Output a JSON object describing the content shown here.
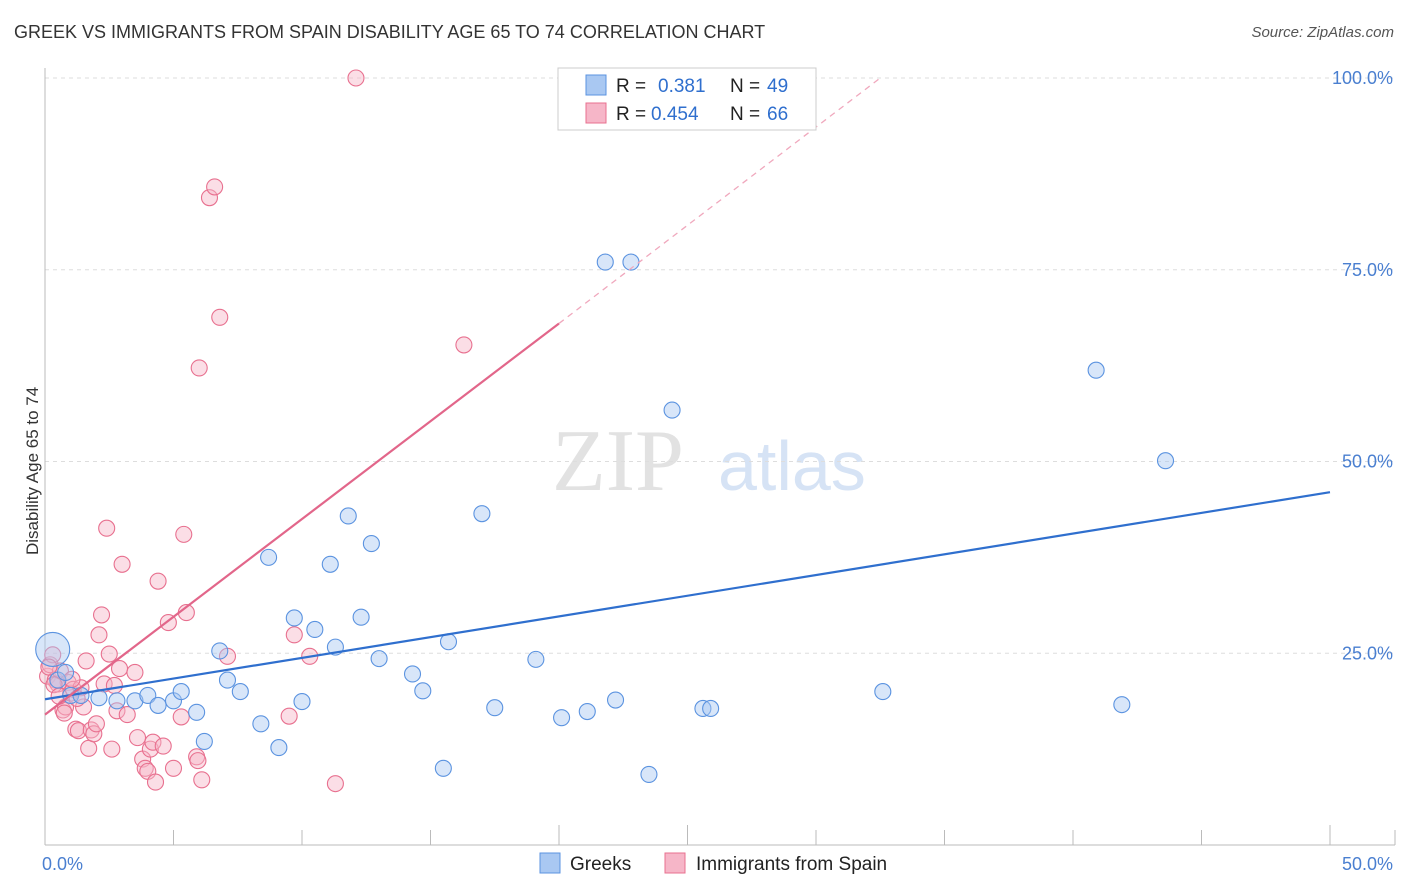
{
  "header": {
    "title": "GREEK VS IMMIGRANTS FROM SPAIN DISABILITY AGE 65 TO 74 CORRELATION CHART",
    "source": "Source: ZipAtlas.com"
  },
  "colors": {
    "greeks": "#5b93e0",
    "greeks_fill": "#a9c8f2",
    "spain": "#e8708f",
    "spain_fill": "#f6b6c8",
    "grid": "#dddddd",
    "tick_text": "#4a7fd0"
  },
  "legend": {
    "rows": [
      {
        "r_label": "R =",
        "r_value": "0.381",
        "n_label": "N =",
        "n_value": "49"
      },
      {
        "r_label": "R =",
        "r_value": "0.454",
        "n_label": "N =",
        "n_value": "66"
      }
    ]
  },
  "bottom_legend": {
    "greeks": "Greeks",
    "spain": "Immigrants from Spain"
  },
  "watermark": {
    "zip": "ZIP",
    "atlas": "atlas"
  },
  "chart_data": {
    "type": "scatter",
    "title": "GREEK VS IMMIGRANTS FROM SPAIN DISABILITY AGE 65 TO 74 CORRELATION CHART",
    "xlabel": "",
    "ylabel": "Disability Age 65 to 74",
    "xlim": [
      0,
      50
    ],
    "ylim": [
      0,
      100
    ],
    "x_tick_labels": [
      "0.0%",
      "50.0%"
    ],
    "y_tick_labels": [
      "25.0%",
      "50.0%",
      "75.0%",
      "100.0%"
    ],
    "y_ticks": [
      25,
      50,
      75,
      100
    ],
    "series": [
      {
        "name": "Greeks",
        "r": 0.381,
        "n": 49,
        "trend": {
          "x0": 0,
          "y0": 19,
          "x1": 50,
          "y1": 46
        },
        "points": [
          [
            0.3,
            25.5
          ],
          [
            0.5,
            21.5
          ],
          [
            0.8,
            22.5
          ],
          [
            1.0,
            19.5
          ],
          [
            1.4,
            19.5
          ],
          [
            2.1,
            19.2
          ],
          [
            2.8,
            18.8
          ],
          [
            3.5,
            18.8
          ],
          [
            4.0,
            19.5
          ],
          [
            4.4,
            18.2
          ],
          [
            5.0,
            18.8
          ],
          [
            5.3,
            20.0
          ],
          [
            5.9,
            17.3
          ],
          [
            6.2,
            13.5
          ],
          [
            6.8,
            25.3
          ],
          [
            7.1,
            21.5
          ],
          [
            7.6,
            20.0
          ],
          [
            8.4,
            15.8
          ],
          [
            8.7,
            37.5
          ],
          [
            9.1,
            12.7
          ],
          [
            9.7,
            29.6
          ],
          [
            10.0,
            18.7
          ],
          [
            10.5,
            28.1
          ],
          [
            11.1,
            36.6
          ],
          [
            11.3,
            25.8
          ],
          [
            11.8,
            42.9
          ],
          [
            12.3,
            29.7
          ],
          [
            12.7,
            39.3
          ],
          [
            13.0,
            24.3
          ],
          [
            14.3,
            22.3
          ],
          [
            14.7,
            20.1
          ],
          [
            15.5,
            10.0
          ],
          [
            15.7,
            26.5
          ],
          [
            17.0,
            43.2
          ],
          [
            17.5,
            17.9
          ],
          [
            19.1,
            24.2
          ],
          [
            20.1,
            16.6
          ],
          [
            21.1,
            17.4
          ],
          [
            21.8,
            76.0
          ],
          [
            22.2,
            18.9
          ],
          [
            22.8,
            76.0
          ],
          [
            23.5,
            9.2
          ],
          [
            24.4,
            56.7
          ],
          [
            25.6,
            17.8
          ],
          [
            25.9,
            17.8
          ],
          [
            32.6,
            20.0
          ],
          [
            40.9,
            61.9
          ],
          [
            41.9,
            18.3
          ],
          [
            43.6,
            50.1
          ]
        ]
      },
      {
        "name": "Immigrants from Spain",
        "r": 0.454,
        "n": 66,
        "trend": {
          "x0": 0,
          "y0": 17,
          "x1": 20,
          "y1": 68
        },
        "trend_dashed": {
          "x0": 20,
          "y0": 68,
          "x1": 32.5,
          "y1": 100
        },
        "points": [
          [
            0.1,
            22.0
          ],
          [
            0.2,
            23.5
          ],
          [
            0.3,
            24.8
          ],
          [
            0.4,
            21.5
          ],
          [
            0.5,
            21.0
          ],
          [
            0.6,
            22.7
          ],
          [
            0.7,
            17.6
          ],
          [
            0.8,
            18.0
          ],
          [
            0.9,
            21.2
          ],
          [
            1.0,
            19.8
          ],
          [
            1.1,
            20.3
          ],
          [
            1.2,
            15.1
          ],
          [
            1.3,
            14.9
          ],
          [
            1.4,
            20.5
          ],
          [
            1.5,
            18.0
          ],
          [
            1.6,
            24.0
          ],
          [
            1.7,
            12.6
          ],
          [
            1.8,
            15.0
          ],
          [
            1.9,
            14.5
          ],
          [
            2.0,
            15.8
          ],
          [
            2.1,
            27.4
          ],
          [
            2.2,
            30.0
          ],
          [
            2.3,
            21.0
          ],
          [
            2.4,
            41.3
          ],
          [
            2.5,
            24.9
          ],
          [
            2.6,
            12.5
          ],
          [
            2.7,
            20.8
          ],
          [
            2.8,
            17.5
          ],
          [
            2.9,
            23.0
          ],
          [
            3.0,
            36.6
          ],
          [
            3.2,
            17.0
          ],
          [
            3.5,
            22.5
          ],
          [
            3.6,
            14.0
          ],
          [
            3.8,
            11.2
          ],
          [
            3.9,
            10.0
          ],
          [
            4.0,
            9.6
          ],
          [
            4.1,
            12.5
          ],
          [
            4.2,
            13.4
          ],
          [
            4.3,
            8.2
          ],
          [
            4.4,
            34.4
          ],
          [
            4.6,
            12.9
          ],
          [
            4.8,
            29.0
          ],
          [
            5.0,
            10.0
          ],
          [
            5.3,
            16.7
          ],
          [
            5.4,
            40.5
          ],
          [
            5.5,
            30.3
          ],
          [
            5.9,
            11.5
          ],
          [
            5.95,
            11.0
          ],
          [
            6.1,
            8.5
          ],
          [
            6.0,
            62.2
          ],
          [
            6.4,
            84.4
          ],
          [
            6.6,
            85.8
          ],
          [
            6.8,
            68.8
          ],
          [
            7.1,
            24.6
          ],
          [
            9.5,
            16.8
          ],
          [
            9.7,
            27.4
          ],
          [
            10.3,
            24.6
          ],
          [
            11.3,
            8.0
          ],
          [
            12.1,
            100.0
          ],
          [
            16.3,
            65.2
          ],
          [
            0.15,
            23.2
          ],
          [
            0.35,
            20.9
          ],
          [
            0.55,
            19.4
          ],
          [
            0.75,
            17.2
          ],
          [
            1.05,
            21.6
          ],
          [
            1.25,
            19.1
          ]
        ]
      }
    ]
  }
}
